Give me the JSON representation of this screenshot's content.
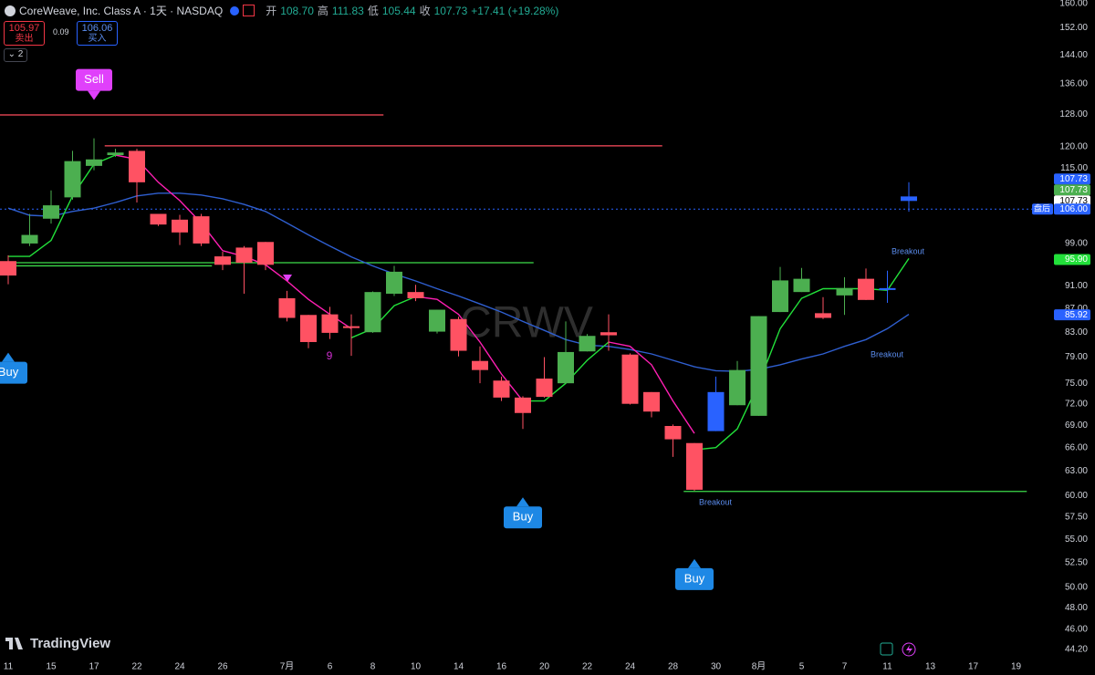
{
  "header": {
    "symbol": "CoreWeave, Inc. Class A · 1天 · NASDAQ",
    "ohlc": [
      {
        "label": "开",
        "value": "108.70"
      },
      {
        "label": "高",
        "value": "111.83"
      },
      {
        "label": "低",
        "value": "105.44"
      },
      {
        "label": "收",
        "value": "107.73"
      }
    ],
    "change": "+17.41 (+19.28%)",
    "sell_price": "105.97",
    "sell_label": "卖出",
    "spread": "0.09",
    "buy_price": "106.06",
    "buy_label": "买入",
    "indicator_count": "2"
  },
  "chart_data": {
    "type": "candlestick",
    "log": true,
    "categories": [
      "11",
      null,
      "15",
      null,
      "17",
      null,
      "22",
      null,
      "24",
      null,
      "26",
      null,
      null,
      "7月",
      null,
      "6",
      null,
      "8",
      null,
      "10",
      null,
      "14",
      null,
      "16",
      null,
      "20",
      null,
      "22",
      null,
      "24",
      null,
      "28",
      null,
      "30",
      null,
      "8月",
      null,
      "5",
      null,
      "7",
      null,
      "11",
      null,
      "13",
      null,
      "17",
      null,
      "19"
    ],
    "open": [
      95.6,
      99.0,
      104,
      108.5,
      115.5,
      118,
      119,
      105,
      103.8,
      104.5,
      96.5,
      98.2,
      99.3,
      88.8,
      85.9,
      86,
      84,
      83,
      89.6,
      89.9,
      83.1,
      85.2,
      78.4,
      75.4,
      72.9,
      75.7,
      75,
      79.9,
      83,
      79.4,
      73.7,
      68.9,
      66.6,
      68.2,
      71.8,
      70.3,
      86.4,
      89.9,
      86.2,
      89.3,
      92.3,
      90.6,
      108.7,
      null,
      null,
      null,
      null,
      null
    ],
    "high": [
      96.7,
      105,
      110,
      119,
      122,
      119.5,
      119.5,
      105,
      104.8,
      105,
      97.4,
      98.5,
      99.3,
      90.1,
      85.9,
      87.3,
      86,
      90,
      94.7,
      91.2,
      86.8,
      85.6,
      80.7,
      76,
      73.1,
      79,
      84.8,
      82.7,
      86,
      79.6,
      73.7,
      69.1,
      66.6,
      76,
      78.4,
      85.7,
      94.5,
      94.3,
      89,
      92.6,
      94.2,
      93.8,
      111.83,
      null,
      null,
      null,
      null,
      null
    ],
    "low": [
      91.3,
      98.5,
      103,
      108,
      114.5,
      117.6,
      107.4,
      102.5,
      98.7,
      98.5,
      93.9,
      89.6,
      93.9,
      84.8,
      80.4,
      81.9,
      79.2,
      82.9,
      89.2,
      88.3,
      82.8,
      79.1,
      75,
      72.4,
      68.5,
      72.9,
      75,
      79.9,
      80,
      71.9,
      70.1,
      64.8,
      60.6,
      68.2,
      71.8,
      70.3,
      86.4,
      89.9,
      85.2,
      85.9,
      88.5,
      88,
      105.44,
      null,
      null,
      null,
      null,
      null
    ],
    "close": [
      92.9,
      100.7,
      106.8,
      116.6,
      117,
      118.6,
      111.8,
      102.8,
      101.2,
      99,
      94.9,
      95.3,
      94.9,
      85.4,
      81.4,
      82.9,
      83.7,
      89.9,
      93.6,
      88.8,
      86.8,
      80,
      77,
      72.9,
      70.7,
      73,
      79.8,
      82.4,
      82.5,
      72,
      70.9,
      67.1,
      60.7,
      73.7,
      77,
      85.7,
      92,
      92.3,
      85.4,
      90.6,
      88.5,
      90.32,
      107.73,
      null,
      null,
      null,
      null,
      null
    ],
    "up_color": "#4caf50",
    "down_color": "#ff5263",
    "highlight": {
      "color": "#2962ff",
      "indices": [
        33,
        41,
        42
      ]
    },
    "lines": [
      {
        "color": "#2f5fd0",
        "values": [
          106.2,
          104.7,
          104.5,
          105.5,
          106.2,
          107.4,
          108.8,
          109.4,
          109.4,
          109.0,
          108.2,
          107.0,
          105.5,
          103.1,
          100.7,
          98.5,
          96.4,
          94.7,
          93.2,
          91.9,
          90.5,
          89.2,
          87.8,
          86.4,
          84.8,
          83.3,
          81.8,
          80.9,
          80.7,
          80.2,
          79.5,
          78.5,
          77.5,
          76.9,
          76.8,
          77.1,
          77.8,
          78.7,
          79.5,
          80.7,
          81.8,
          83.6,
          86.0,
          null,
          null,
          null,
          null,
          null
        ]
      },
      {
        "color": "#22e03a",
        "values": [
          96.5,
          96.5,
          99.6,
          108.8,
          115.9,
          118.0,
          null,
          null,
          null,
          null,
          null,
          null,
          null,
          null,
          null,
          null,
          82.1,
          83.6,
          87.5,
          89.1,
          null,
          null,
          null,
          null,
          72.4,
          72.4,
          75.0,
          78.5,
          81.4,
          null,
          null,
          null,
          65.7,
          66.0,
          68.5,
          75.0,
          83.6,
          88.8,
          90.5,
          90.5,
          90.5,
          90.2,
          96.1,
          null,
          null,
          null,
          null,
          null
        ]
      },
      {
        "color": "#ff1fb4",
        "values": [
          null,
          null,
          null,
          null,
          null,
          118.0,
          117,
          111.8,
          107.8,
          103.1,
          97.6,
          96.5,
          94.9,
          91.9,
          88.6,
          86.0,
          83.6,
          null,
          null,
          89.1,
          88.6,
          86.0,
          81.4,
          76.4,
          72.4,
          null,
          null,
          null,
          81.4,
          80.7,
          77.8,
          72.4,
          67.9,
          null,
          null,
          null,
          null,
          null,
          null,
          null,
          null,
          null,
          null,
          null,
          null,
          null,
          null,
          null
        ]
      }
    ],
    "levels": [
      {
        "value": 127.8,
        "color": "#ff4d5e",
        "start": 0,
        "end": 17
      },
      {
        "value": 120.2,
        "color": "#ff4d5e",
        "start": 5,
        "end": 30
      },
      {
        "value": 95.3,
        "color": "#3ddc4a",
        "start": 0,
        "end": 24
      },
      {
        "value": 94.7,
        "color": "#3ddc4a",
        "start": 0,
        "end": 9
      },
      {
        "value": 60.5,
        "color": "#3ddc4a",
        "start": 32,
        "end": 47
      }
    ],
    "signals": [
      {
        "label": "Sell",
        "at": 4,
        "color": "#e040fb"
      },
      {
        "label": "Buy",
        "at": 0,
        "color": "#1e88e5"
      },
      {
        "label": "Buy",
        "at": 24,
        "color": "#1e88e5"
      },
      {
        "label": "Buy",
        "at": 32,
        "color": "#1e88e5"
      }
    ],
    "price_labels": [
      {
        "value": 107.73,
        "color": "#2962ff"
      },
      {
        "value": 107.73,
        "color": "#4caf50"
      },
      {
        "value": 107.73,
        "color": "#ffffff"
      },
      {
        "value": 106,
        "label": "106.00",
        "tag": "盘后",
        "color": "#2962ff"
      },
      {
        "value": 95.9,
        "label": "95.90",
        "color": "#22e03a"
      },
      {
        "value": 85.92,
        "color": "#2962ff"
      }
    ],
    "ylim": [
      44.2,
      160
    ],
    "yticks": [
      {
        "value": 160,
        "label": "160.00"
      },
      {
        "value": 152,
        "label": "152.00"
      },
      {
        "value": 144,
        "label": "144.00"
      },
      {
        "value": 136,
        "label": "136.00"
      },
      {
        "value": 128,
        "label": "128.00"
      },
      {
        "value": 120,
        "label": "120.00"
      },
      {
        "value": 115,
        "label": "115.00"
      },
      {
        "value": 99,
        "label": "99.00"
      },
      {
        "value": 91,
        "label": "91.00"
      },
      {
        "value": 87,
        "label": "87.00"
      },
      {
        "value": 83,
        "label": "83.00"
      },
      {
        "value": 79,
        "label": "79.00"
      },
      {
        "value": 75,
        "label": "75.00"
      },
      {
        "value": 72,
        "label": "72.00"
      },
      {
        "value": 69,
        "label": "69.00"
      },
      {
        "value": 66,
        "label": "66.00"
      },
      {
        "value": 63,
        "label": "63.00"
      },
      {
        "value": 60,
        "label": "60.00"
      },
      {
        "value": 57.5,
        "label": "57.50"
      },
      {
        "value": 55,
        "label": "55.00"
      },
      {
        "value": 52.5,
        "label": "52.50"
      },
      {
        "value": 50,
        "label": "50.00"
      },
      {
        "value": 48,
        "label": "48.00"
      },
      {
        "value": 46,
        "label": "46.00"
      },
      {
        "value": 44.2,
        "label": "44.20"
      }
    ],
    "annotations": {
      "breakouts": [
        "Breakout",
        "Breakout",
        "Breakout"
      ],
      "count": "9"
    }
  },
  "watermark": "CRWV",
  "brand": "TradingView"
}
